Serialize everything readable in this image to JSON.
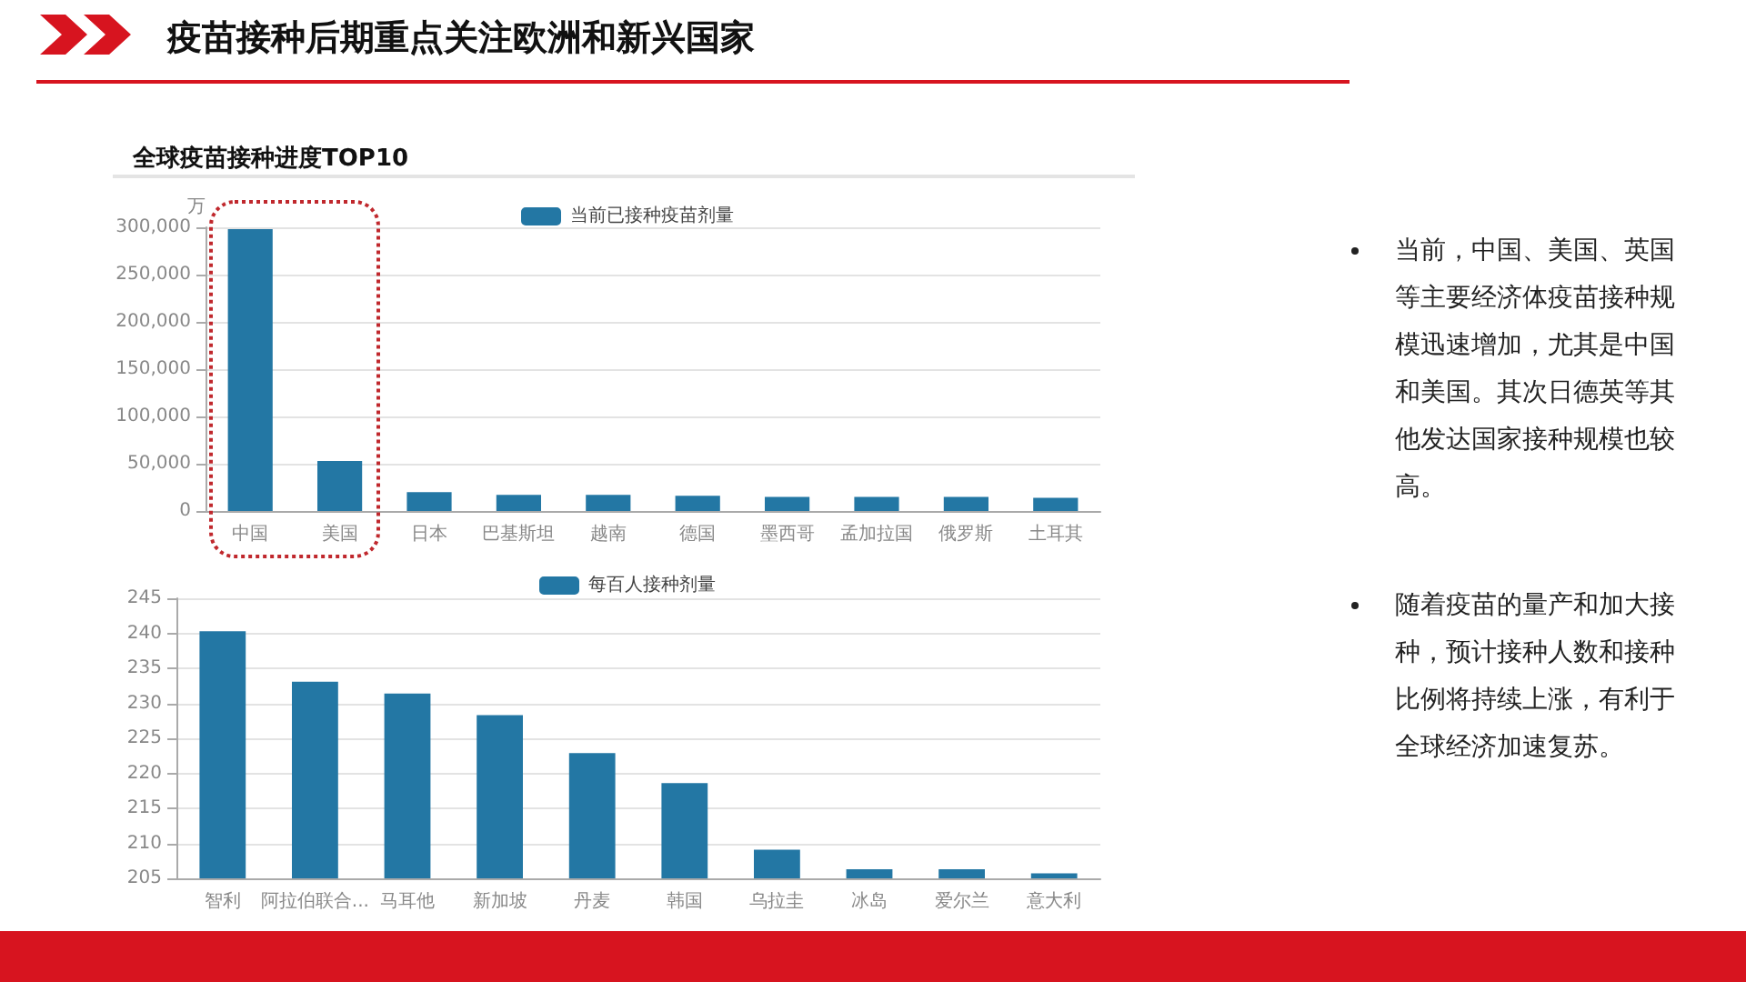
{
  "chart_data": [
    {
      "type": "other",
      "title": "疫苗接种后期重点关注欧洲和新兴国家",
      "annotations": [
        "当前，中国、美国、英国等主要经济体疫苗接种规模迅速增加，尤其是中国和美国。其次日德英等其他发达国家接种规模也较高。",
        "随着疫苗的量产和加大接种，预计接种人数和接种比例将持续上涨，有利于全球经济加速复苏。"
      ]
    },
    {
      "type": "bar",
      "title": "全球疫苗接种进度TOP10",
      "ylabel": "万",
      "categories": [
        "中国",
        "美国",
        "日本",
        "巴基斯坦",
        "越南",
        "德国",
        "墨西哥",
        "孟加拉国",
        "俄罗斯",
        "土耳其"
      ],
      "series": [
        {
          "name": "当前已接种疫苗剂量",
          "color": "#2377a4",
          "values": [
            298000,
            53000,
            20000,
            17000,
            17000,
            16000,
            15000,
            15000,
            15000,
            14000
          ]
        }
      ],
      "ylim": [
        0,
        300000
      ],
      "yticks": [
        {
          "value": 0,
          "label": "0"
        },
        {
          "value": 50000,
          "label": "50,000"
        },
        {
          "value": 100000,
          "label": "100,000"
        },
        {
          "value": 150000,
          "label": "150,000"
        },
        {
          "value": 200000,
          "label": "200,000"
        },
        {
          "value": 250000,
          "label": "250,000"
        },
        {
          "value": 300000,
          "label": "300,000"
        }
      ],
      "grid": "y",
      "legend": "top"
    },
    {
      "type": "bar",
      "categories": [
        "智利",
        "阿拉伯联合...",
        "马耳他",
        "新加坡",
        "丹麦",
        "韩国",
        "乌拉圭",
        "冰岛",
        "爱尔兰",
        "意大利"
      ],
      "series": [
        {
          "name": "每百人接种剂量",
          "color": "#2377a4",
          "values": [
            240.3,
            233.1,
            231.4,
            228.3,
            222.9,
            218.6,
            209.1,
            206.3,
            206.3,
            205.7
          ]
        }
      ],
      "ylim": [
        205,
        245
      ],
      "yticks": [
        205,
        210,
        215,
        220,
        225,
        230,
        235,
        240,
        245
      ],
      "grid": "y",
      "legend": "top"
    }
  ]
}
